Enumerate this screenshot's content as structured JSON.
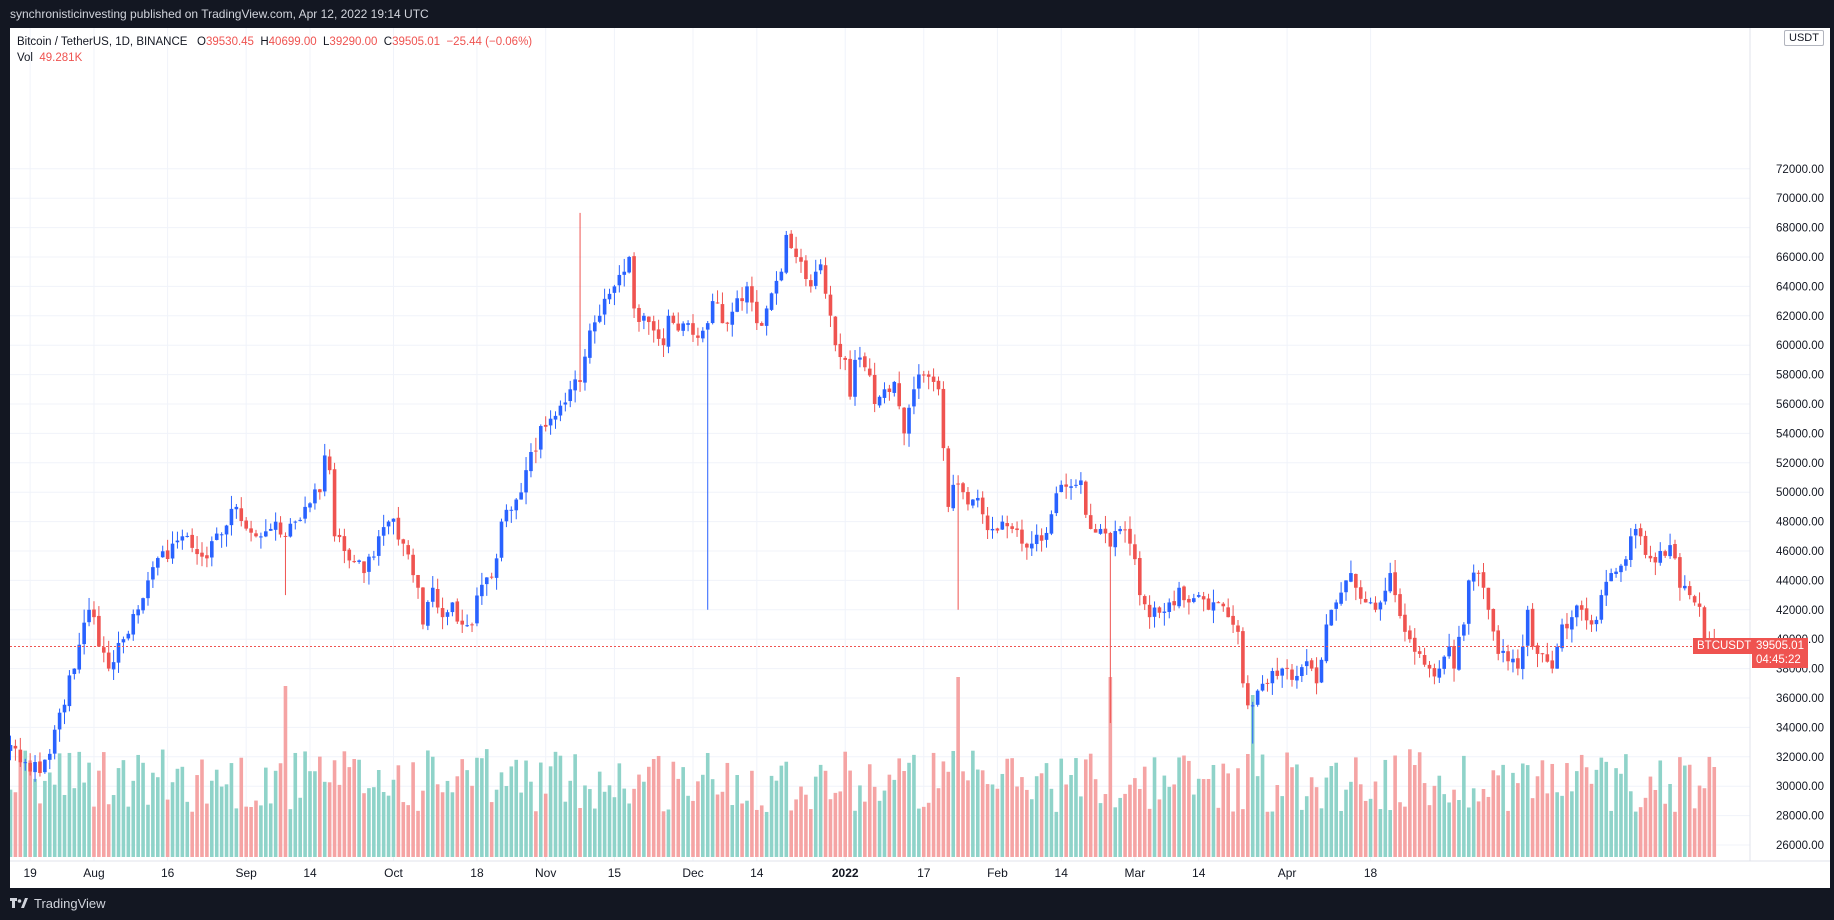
{
  "header": {
    "publish_line": "synchronisticinvesting published on TradingView.com, Apr 12, 2022 19:14 UTC"
  },
  "legend": {
    "symbol_line": "Bitcoin / TetherUS, 1D, BINANCE",
    "open_label": "O",
    "open_value": "39530.45",
    "high_label": "H",
    "high_value": "40699.00",
    "low_label": "L",
    "low_value": "39290.00",
    "close_label": "C",
    "close_value": "39505.01",
    "change": "−25.44 (−0.06%)",
    "vol_label": "Vol",
    "vol_value": "49.281K"
  },
  "price_axis": {
    "unit": "USDT",
    "symbol_tag": "BTCUSDT",
    "last_price": "39505.01",
    "countdown": "04:45:22"
  },
  "footer": {
    "brand": "TradingView"
  },
  "colors": {
    "up": "#2962ff",
    "down": "#ef5350",
    "vol_up": "#8fd3c9",
    "vol_down": "#f5a4a4",
    "price_line": "#ef5350",
    "background": "#ffffff",
    "frame": "#131722"
  },
  "chart_data": {
    "type": "candlestick",
    "interval": "1D",
    "start_date": "2021-07-15",
    "y_ticks": [
      26000,
      28000,
      30000,
      32000,
      34000,
      36000,
      38000,
      40000,
      42000,
      44000,
      46000,
      48000,
      50000,
      52000,
      54000,
      56000,
      58000,
      60000,
      62000,
      64000,
      66000,
      68000,
      70000,
      72000
    ],
    "y_tick_labels": [
      "26000.00",
      "28000.00",
      "30000.00",
      "32000.00",
      "34000.00",
      "36000.00",
      "38000.00",
      "40000.00",
      "42000.00",
      "44000.00",
      "46000.00",
      "48000.00",
      "50000.00",
      "52000.00",
      "54000.00",
      "56000.00",
      "58000.00",
      "60000.00",
      "62000.00",
      "64000.00",
      "66000.00",
      "68000.00",
      "70000.00",
      "72000.00"
    ],
    "ylim": [
      25000,
      73500
    ],
    "x_ticks": [
      {
        "date": "2021-07-19",
        "label": "19"
      },
      {
        "date": "2021-08-01",
        "label": "Aug"
      },
      {
        "date": "2021-08-16",
        "label": "16"
      },
      {
        "date": "2021-09-01",
        "label": "Sep"
      },
      {
        "date": "2021-09-14",
        "label": "14"
      },
      {
        "date": "2021-10-01",
        "label": "Oct"
      },
      {
        "date": "2021-10-18",
        "label": "18"
      },
      {
        "date": "2021-11-01",
        "label": "Nov"
      },
      {
        "date": "2021-11-15",
        "label": "15"
      },
      {
        "date": "2021-12-01",
        "label": "Dec"
      },
      {
        "date": "2021-12-14",
        "label": "14"
      },
      {
        "date": "2022-01-01",
        "label": "2022",
        "bold": true
      },
      {
        "date": "2022-01-17",
        "label": "17"
      },
      {
        "date": "2022-02-01",
        "label": "Feb"
      },
      {
        "date": "2022-02-14",
        "label": "14"
      },
      {
        "date": "2022-03-01",
        "label": "Mar"
      },
      {
        "date": "2022-03-14",
        "label": "14"
      },
      {
        "date": "2022-04-01",
        "label": "Apr"
      },
      {
        "date": "2022-04-18",
        "label": "18"
      }
    ],
    "close_anchors": [
      [
        0,
        32800
      ],
      [
        4,
        31000
      ],
      [
        6,
        30900
      ],
      [
        8,
        32200
      ],
      [
        10,
        35000
      ],
      [
        13,
        38000
      ],
      [
        16,
        42000
      ],
      [
        17,
        41500
      ],
      [
        18,
        39500
      ],
      [
        20,
        38000
      ],
      [
        23,
        40000
      ],
      [
        28,
        44000
      ],
      [
        33,
        46500
      ],
      [
        35,
        47000
      ],
      [
        40,
        45500
      ],
      [
        46,
        49000
      ],
      [
        50,
        47000
      ],
      [
        53,
        47500
      ],
      [
        56,
        47000
      ],
      [
        58,
        48000
      ],
      [
        60,
        49000
      ],
      [
        63,
        50000
      ],
      [
        64,
        52500
      ],
      [
        65,
        51500
      ],
      [
        66,
        47000
      ],
      [
        68,
        46000
      ],
      [
        72,
        44500
      ],
      [
        75,
        47000
      ],
      [
        77,
        48000
      ],
      [
        78,
        48200
      ],
      [
        80,
        46500
      ],
      [
        83,
        43500
      ],
      [
        84,
        41000
      ],
      [
        86,
        43500
      ],
      [
        88,
        41500
      ],
      [
        90,
        42500
      ],
      [
        91,
        41200
      ],
      [
        94,
        41000
      ],
      [
        96,
        43700
      ],
      [
        99,
        45500
      ],
      [
        100,
        48000
      ],
      [
        101,
        48800
      ],
      [
        103,
        49500
      ],
      [
        105,
        51500
      ],
      [
        108,
        54500
      ],
      [
        110,
        55000
      ],
      [
        114,
        57000
      ],
      [
        116,
        57500
      ],
      [
        118,
        61000
      ],
      [
        120,
        62000
      ],
      [
        123,
        64000
      ],
      [
        125,
        65000
      ],
      [
        126,
        66000
      ],
      [
        127,
        62500
      ],
      [
        129,
        62000
      ],
      [
        131,
        61000
      ],
      [
        133,
        60000
      ],
      [
        134,
        62000
      ],
      [
        136,
        61000
      ],
      [
        138,
        61500
      ],
      [
        140,
        60500
      ],
      [
        142,
        61500
      ],
      [
        143,
        63000
      ],
      [
        145,
        61500
      ],
      [
        149,
        63000
      ],
      [
        150,
        64000
      ],
      [
        152,
        61500
      ],
      [
        154,
        62500
      ],
      [
        157,
        65000
      ],
      [
        158,
        67500
      ],
      [
        160,
        66000
      ],
      [
        162,
        64500
      ],
      [
        163,
        64000
      ],
      [
        164,
        65000
      ],
      [
        165,
        65500
      ],
      [
        166,
        63500
      ],
      [
        168,
        60000
      ],
      [
        170,
        59000
      ],
      [
        171,
        56500
      ],
      [
        172,
        59000
      ],
      [
        174,
        58500
      ],
      [
        176,
        56000
      ],
      [
        178,
        57000
      ],
      [
        180,
        57500
      ],
      [
        182,
        54000
      ],
      [
        184,
        57000
      ],
      [
        186,
        58000
      ],
      [
        188,
        57500
      ],
      [
        189,
        57000
      ],
      [
        190,
        53000
      ],
      [
        191,
        49000
      ],
      [
        192,
        50500
      ],
      [
        194,
        50000
      ],
      [
        196,
        49500
      ],
      [
        198,
        48500
      ],
      [
        200,
        47500
      ],
      [
        202,
        48000
      ],
      [
        204,
        47500
      ],
      [
        206,
        46500
      ],
      [
        208,
        46500
      ],
      [
        210,
        46700
      ],
      [
        212,
        48500
      ],
      [
        214,
        50500
      ],
      [
        217,
        50500
      ],
      [
        218,
        50800
      ],
      [
        220,
        47500
      ],
      [
        222,
        47500
      ],
      [
        224,
        46300
      ],
      [
        226,
        47500
      ],
      [
        228,
        46500
      ],
      [
        230,
        43000
      ],
      [
        232,
        41500
      ],
      [
        234,
        41800
      ],
      [
        236,
        42500
      ],
      [
        238,
        43500
      ],
      [
        240,
        42500
      ],
      [
        242,
        43000
      ],
      [
        244,
        42000
      ],
      [
        246,
        42500
      ],
      [
        248,
        41500
      ],
      [
        250,
        40500
      ],
      [
        251,
        37000
      ],
      [
        252,
        35500
      ],
      [
        253,
        35500
      ],
      [
        254,
        36500
      ],
      [
        256,
        37000
      ],
      [
        258,
        37500
      ],
      [
        260,
        38000
      ],
      [
        262,
        37500
      ],
      [
        264,
        38500
      ],
      [
        265,
        38000
      ],
      [
        266,
        37000
      ],
      [
        268,
        41000
      ],
      [
        270,
        42500
      ],
      [
        272,
        44000
      ],
      [
        273,
        44500
      ],
      [
        274,
        43500
      ],
      [
        276,
        42500
      ],
      [
        278,
        42000
      ],
      [
        279,
        42500
      ],
      [
        281,
        44500
      ],
      [
        282,
        43000
      ],
      [
        284,
        40500
      ],
      [
        285,
        40000
      ],
      [
        287,
        39000
      ],
      [
        289,
        38000
      ],
      [
        291,
        38000
      ],
      [
        293,
        39500
      ],
      [
        294,
        38000
      ],
      [
        296,
        41000
      ],
      [
        297,
        44000
      ],
      [
        299,
        44500
      ],
      [
        300,
        43500
      ],
      [
        301,
        42000
      ],
      [
        303,
        39000
      ],
      [
        305,
        38500
      ],
      [
        307,
        38000
      ],
      [
        308,
        39500
      ],
      [
        309,
        42000
      ],
      [
        310,
        39500
      ],
      [
        312,
        39000
      ],
      [
        314,
        38000
      ],
      [
        316,
        41000
      ],
      [
        318,
        41500
      ],
      [
        320,
        42000
      ],
      [
        322,
        41000
      ],
      [
        324,
        43000
      ],
      [
        326,
        44500
      ],
      [
        328,
        45000
      ],
      [
        330,
        47000
      ],
      [
        331,
        47500
      ],
      [
        332,
        47000
      ],
      [
        334,
        45500
      ],
      [
        336,
        46000
      ],
      [
        338,
        46400
      ],
      [
        339,
        45500
      ],
      [
        340,
        43500
      ],
      [
        342,
        43000
      ],
      [
        343,
        42500
      ],
      [
        344,
        42200
      ],
      [
        345,
        40000
      ],
      [
        346,
        39530
      ],
      [
        347,
        39505
      ]
    ],
    "last": {
      "open": 39530.45,
      "high": 40699.0,
      "low": 39290.0,
      "close": 39505.01,
      "volume": "49.281K"
    }
  }
}
